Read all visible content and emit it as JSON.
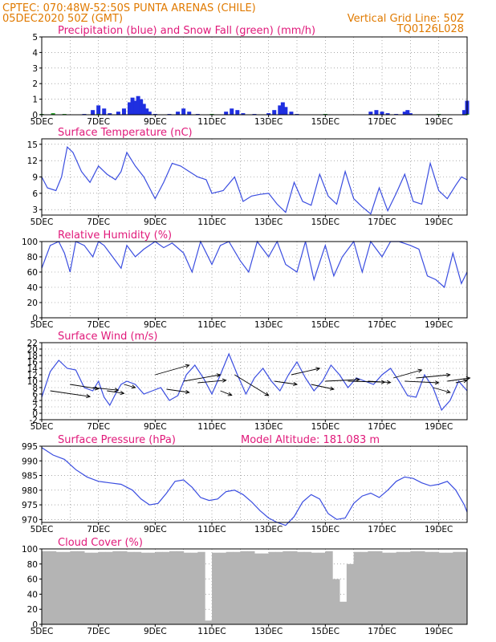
{
  "header": {
    "line1_left": "CPTEC:   070:48W-52:50S   PUNTA ARENAS (CHILE)",
    "line2_left": "05DEC2020 50Z (GMT)",
    "line2_right": "Vertical Grid Line: 50Z",
    "line3_right": "TQ0126L028"
  },
  "colors": {
    "header": "#e07a00",
    "panel_title": "#e0197a",
    "precip": "#1f2fe0",
    "snow": "#1fa01f",
    "line": "#3a4de0",
    "cloud": "#b4b4b4",
    "wind_arrow": "#000000"
  },
  "x_tick_labels": [
    "5DEC",
    "7DEC",
    "9DEC",
    "11DEC",
    "13DEC",
    "15DEC",
    "17DEC",
    "19DEC"
  ],
  "chart_data": [
    {
      "type": "bar",
      "title": "Precipitation (blue) and Snow Fall (green) (mm/h)",
      "xlim": [
        0,
        15
      ],
      "ylim": [
        0,
        5
      ],
      "y_ticks": [
        0,
        1,
        2,
        3,
        4,
        5
      ],
      "grid": true,
      "series": [
        {
          "points": [
            [
              0.0,
              0.05
            ],
            [
              1.5,
              0.05
            ],
            [
              1.8,
              0.3
            ],
            [
              2.0,
              0.6
            ],
            [
              2.2,
              0.4
            ],
            [
              2.4,
              0.1
            ],
            [
              2.7,
              0.2
            ],
            [
              2.9,
              0.4
            ],
            [
              3.1,
              0.8
            ],
            [
              3.2,
              1.1
            ],
            [
              3.3,
              0.9
            ],
            [
              3.4,
              1.2
            ],
            [
              3.5,
              1.0
            ],
            [
              3.6,
              0.7
            ],
            [
              3.7,
              0.4
            ],
            [
              3.8,
              0.2
            ],
            [
              4.0,
              0.05
            ],
            [
              4.5,
              0.05
            ],
            [
              4.8,
              0.2
            ],
            [
              5.0,
              0.4
            ],
            [
              5.2,
              0.2
            ],
            [
              5.5,
              0.05
            ],
            [
              6.0,
              0.05
            ],
            [
              6.5,
              0.2
            ],
            [
              6.7,
              0.4
            ],
            [
              6.9,
              0.3
            ],
            [
              7.1,
              0.1
            ],
            [
              7.5,
              0.05
            ],
            [
              8.0,
              0.1
            ],
            [
              8.2,
              0.3
            ],
            [
              8.4,
              0.6
            ],
            [
              8.5,
              0.8
            ],
            [
              8.6,
              0.5
            ],
            [
              8.8,
              0.2
            ],
            [
              9.0,
              0.05
            ],
            [
              10.0,
              0.05
            ],
            [
              11.6,
              0.2
            ],
            [
              11.8,
              0.3
            ],
            [
              12.0,
              0.2
            ],
            [
              12.2,
              0.1
            ],
            [
              12.5,
              0.05
            ],
            [
              12.8,
              0.2
            ],
            [
              12.9,
              0.3
            ],
            [
              13.0,
              0.1
            ],
            [
              14.0,
              0.05
            ],
            [
              14.9,
              0.3
            ],
            [
              15.0,
              0.9
            ]
          ]
        },
        {
          "points": [
            [
              0.0,
              0.05
            ],
            [
              0.4,
              0.1
            ],
            [
              0.8,
              0.05
            ],
            [
              2.0,
              0.05
            ],
            [
              6.0,
              0.05
            ],
            [
              10.0,
              0.05
            ],
            [
              14.0,
              0.05
            ],
            [
              15.0,
              0.05
            ]
          ]
        }
      ]
    },
    {
      "type": "line",
      "title": "Surface Temperature (nC)",
      "xlim": [
        0,
        15
      ],
      "ylim": [
        2,
        16
      ],
      "y_ticks": [
        3,
        6,
        9,
        12,
        15
      ],
      "grid": true,
      "x": [
        0.0,
        0.2,
        0.5,
        0.7,
        0.9,
        1.1,
        1.4,
        1.7,
        2.0,
        2.3,
        2.6,
        2.8,
        3.0,
        3.3,
        3.6,
        4.0,
        4.3,
        4.6,
        4.9,
        5.2,
        5.5,
        5.8,
        6.0,
        6.4,
        6.8,
        7.1,
        7.4,
        7.7,
        8.0,
        8.3,
        8.6,
        8.9,
        9.2,
        9.5,
        9.8,
        10.1,
        10.4,
        10.7,
        11.0,
        11.3,
        11.6,
        11.9,
        12.2,
        12.5,
        12.8,
        13.1,
        13.4,
        13.7,
        14.0,
        14.3,
        14.6,
        14.8,
        15.0
      ],
      "y": [
        9.0,
        7.0,
        6.5,
        9.0,
        14.5,
        13.5,
        10.0,
        8.0,
        11.0,
        9.5,
        8.5,
        10.0,
        13.5,
        11.0,
        9.0,
        5.0,
        8.0,
        11.5,
        11.0,
        10.0,
        9.0,
        8.5,
        6.0,
        6.5,
        9.0,
        4.5,
        5.5,
        5.8,
        6.0,
        4.0,
        2.5,
        8.0,
        4.5,
        3.8,
        9.5,
        5.5,
        4.0,
        10.0,
        5.0,
        3.5,
        2.2,
        7.0,
        2.8,
        6.0,
        9.5,
        4.5,
        4.0,
        11.5,
        6.5,
        5.0,
        7.5,
        9.0,
        8.5
      ]
    },
    {
      "type": "line",
      "title": "Relative Humidity (%)",
      "xlim": [
        0,
        15
      ],
      "ylim": [
        0,
        100
      ],
      "y_ticks": [
        0,
        20,
        40,
        60,
        80,
        100
      ],
      "grid": true,
      "x": [
        0.0,
        0.3,
        0.6,
        0.8,
        1.0,
        1.2,
        1.5,
        1.8,
        2.0,
        2.2,
        2.5,
        2.8,
        3.0,
        3.3,
        3.6,
        4.0,
        4.3,
        4.6,
        5.0,
        5.3,
        5.6,
        6.0,
        6.3,
        6.6,
        7.0,
        7.3,
        7.6,
        8.0,
        8.3,
        8.6,
        9.0,
        9.3,
        9.6,
        10.0,
        10.3,
        10.6,
        11.0,
        11.3,
        11.6,
        12.0,
        12.3,
        12.6,
        13.0,
        13.3,
        13.6,
        13.9,
        14.2,
        14.5,
        14.8,
        15.0
      ],
      "y": [
        65,
        95,
        100,
        85,
        60,
        100,
        95,
        80,
        100,
        95,
        80,
        65,
        95,
        80,
        90,
        100,
        92,
        98,
        85,
        60,
        100,
        70,
        95,
        100,
        75,
        60,
        100,
        80,
        100,
        70,
        60,
        100,
        50,
        95,
        55,
        80,
        100,
        60,
        100,
        80,
        100,
        100,
        95,
        90,
        55,
        50,
        40,
        85,
        45,
        60
      ]
    },
    {
      "type": "line",
      "title": "Surface Wind (m/s)",
      "xlim": [
        0,
        15
      ],
      "ylim": [
        -2,
        22
      ],
      "y_ticks": [
        -2,
        0,
        2,
        4,
        6,
        8,
        10,
        12,
        14,
        16,
        18,
        20,
        22
      ],
      "grid": true,
      "x": [
        0.0,
        0.3,
        0.6,
        0.9,
        1.2,
        1.5,
        1.8,
        2.0,
        2.2,
        2.4,
        2.6,
        2.8,
        3.0,
        3.3,
        3.6,
        3.9,
        4.2,
        4.5,
        4.8,
        5.1,
        5.4,
        5.7,
        6.0,
        6.3,
        6.6,
        6.9,
        7.2,
        7.5,
        7.8,
        8.1,
        8.4,
        8.7,
        9.0,
        9.3,
        9.6,
        9.9,
        10.2,
        10.5,
        10.8,
        11.1,
        11.4,
        11.7,
        12.0,
        12.3,
        12.6,
        12.9,
        13.2,
        13.5,
        13.8,
        14.1,
        14.4,
        14.7,
        15.0
      ],
      "y": [
        5.0,
        13.0,
        16.5,
        14.0,
        13.5,
        8.0,
        7.0,
        10.0,
        5.0,
        2.5,
        6.0,
        9.0,
        10.0,
        9.0,
        6.0,
        7.0,
        8.0,
        4.0,
        5.5,
        12.0,
        15.0,
        11.0,
        6.0,
        12.0,
        18.5,
        12.0,
        6.0,
        11.0,
        14.0,
        10.0,
        7.0,
        12.0,
        16.0,
        11.0,
        7.0,
        10.0,
        15.0,
        12.0,
        8.0,
        11.0,
        10.0,
        9.0,
        12.0,
        14.0,
        10.0,
        5.5,
        5.0,
        12.0,
        8.0,
        1.0,
        4.0,
        10.0,
        7.0
      ],
      "arrows": [
        {
          "x": 0.3,
          "y": 7.0,
          "u": 1.4,
          "v": -1.8
        },
        {
          "x": 1.0,
          "y": 9.0,
          "u": 1.0,
          "v": -1.4
        },
        {
          "x": 1.8,
          "y": 8.0,
          "u": 0.9,
          "v": -0.8
        },
        {
          "x": 2.3,
          "y": 7.0,
          "u": 0.6,
          "v": -0.8
        },
        {
          "x": 2.9,
          "y": 9.0,
          "u": 0.4,
          "v": -1.0
        },
        {
          "x": 4.0,
          "y": 12.0,
          "u": 1.2,
          "v": 3.0
        },
        {
          "x": 4.4,
          "y": 7.5,
          "u": 0.8,
          "v": -1.0
        },
        {
          "x": 5.0,
          "y": 10.0,
          "u": 1.3,
          "v": 2.0
        },
        {
          "x": 5.5,
          "y": 9.5,
          "u": 1.0,
          "v": 0.8
        },
        {
          "x": 6.3,
          "y": 7.0,
          "u": 0.4,
          "v": -1.4
        },
        {
          "x": 6.8,
          "y": 12.0,
          "u": 1.2,
          "v": -6.5
        },
        {
          "x": 8.2,
          "y": 10.0,
          "u": 0.8,
          "v": -1.0
        },
        {
          "x": 8.8,
          "y": 12.0,
          "u": 1.0,
          "v": 2.0
        },
        {
          "x": 9.5,
          "y": 9.0,
          "u": 0.8,
          "v": -1.5
        },
        {
          "x": 10.0,
          "y": 10.0,
          "u": 1.2,
          "v": 0.5
        },
        {
          "x": 10.8,
          "y": 10.0,
          "u": 1.3,
          "v": -0.3
        },
        {
          "x": 11.5,
          "y": 10.0,
          "u": 0.8,
          "v": -0.4
        },
        {
          "x": 12.4,
          "y": 11.0,
          "u": 1.0,
          "v": 2.5
        },
        {
          "x": 12.8,
          "y": 10.0,
          "u": 1.2,
          "v": -0.5
        },
        {
          "x": 13.2,
          "y": 11.0,
          "u": 1.2,
          "v": 1.0
        },
        {
          "x": 13.8,
          "y": 8.0,
          "u": 0.6,
          "v": -1.5
        },
        {
          "x": 14.3,
          "y": 10.0,
          "u": 0.8,
          "v": 1.0
        },
        {
          "x": 14.6,
          "y": 9.5,
          "u": 0.4,
          "v": 0.8
        }
      ]
    },
    {
      "type": "line",
      "title": "Surface Pressure (hPa)",
      "subtitle": "Model Altitude: 181.083 m",
      "xlim": [
        0,
        15
      ],
      "ylim": [
        969,
        995
      ],
      "y_ticks": [
        970,
        975,
        980,
        985,
        990,
        995
      ],
      "grid": true,
      "x": [
        0.0,
        0.4,
        0.8,
        1.2,
        1.6,
        2.0,
        2.4,
        2.8,
        3.2,
        3.5,
        3.8,
        4.1,
        4.4,
        4.7,
        5.0,
        5.3,
        5.6,
        5.9,
        6.2,
        6.5,
        6.8,
        7.1,
        7.4,
        7.7,
        8.0,
        8.3,
        8.6,
        8.9,
        9.2,
        9.5,
        9.8,
        10.1,
        10.4,
        10.7,
        11.0,
        11.3,
        11.6,
        11.9,
        12.2,
        12.5,
        12.8,
        13.1,
        13.4,
        13.7,
        14.0,
        14.3,
        14.6,
        14.9,
        15.0
      ],
      "y": [
        994.5,
        992.0,
        990.5,
        987.0,
        984.5,
        983.0,
        982.5,
        982.0,
        980.0,
        977.0,
        975.0,
        975.5,
        979.0,
        983.0,
        983.5,
        981.0,
        977.5,
        976.5,
        977.0,
        979.5,
        980.0,
        978.5,
        976.0,
        973.0,
        970.5,
        969.0,
        968.0,
        971.0,
        976.0,
        978.5,
        977.0,
        972.0,
        970.0,
        970.5,
        975.5,
        978.0,
        979.0,
        977.5,
        980.0,
        983.0,
        984.5,
        984.0,
        982.5,
        981.5,
        982.0,
        983.0,
        980.0,
        975.0,
        972.5
      ]
    },
    {
      "type": "bar",
      "title": "Cloud Cover (%)",
      "xlim": [
        0,
        15
      ],
      "ylim": [
        0,
        100
      ],
      "y_ticks": [
        0,
        20,
        40,
        60,
        80,
        100
      ],
      "grid": true,
      "x": [
        0.0,
        0.5,
        1.0,
        1.5,
        2.0,
        2.5,
        3.0,
        3.5,
        4.0,
        4.5,
        5.0,
        5.5,
        5.7,
        5.9,
        6.0,
        6.5,
        7.0,
        7.5,
        8.0,
        8.5,
        9.0,
        9.5,
        10.0,
        10.3,
        10.5,
        10.7,
        11.0,
        11.5,
        12.0,
        12.5,
        13.0,
        13.5,
        14.0,
        14.5,
        15.0
      ],
      "y": [
        97,
        96,
        97,
        95,
        96,
        97,
        96,
        95,
        96,
        97,
        95,
        96,
        5,
        96,
        95,
        96,
        97,
        94,
        96,
        97,
        96,
        95,
        97,
        60,
        30,
        80,
        96,
        97,
        95,
        96,
        97,
        96,
        95,
        96,
        97
      ]
    }
  ]
}
